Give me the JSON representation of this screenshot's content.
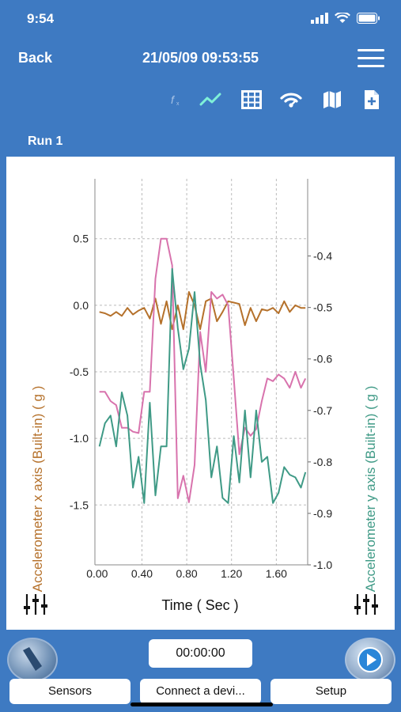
{
  "status_bar": {
    "time": "9:54"
  },
  "nav": {
    "back_label": "Back",
    "title": "21/05/09 09:53:55"
  },
  "toolbar": {
    "icons": [
      "function-icon",
      "line-chart-icon",
      "table-icon",
      "wifi-icon",
      "map-icon",
      "add-page-icon"
    ]
  },
  "run_label": "Run 1",
  "chart_data": {
    "type": "line",
    "xlabel": "Time ( Sec )",
    "ylabel_left": "Accelerometer x axis (Built-in) ( g )",
    "ylabel_right": "Accelerometer y axis (Built-in) ( g )",
    "x_ticks": [
      "0.00",
      "0.40",
      "0.80",
      "1.20",
      "1.60"
    ],
    "y_left_ticks": [
      "0.5",
      "0.0",
      "-0.5",
      "-1.0",
      "-1.5"
    ],
    "y_right_ticks": [
      "-0.4",
      "-0.5",
      "-0.6",
      "-0.7",
      "-0.8",
      "-0.9",
      "-1.0"
    ],
    "xlim": [
      -0.02,
      1.88
    ],
    "ylim_left": [
      -1.95,
      0.95
    ],
    "ylim_right": [
      -1.0,
      -0.25
    ],
    "series": [
      {
        "axis": "left",
        "color": "#b5712b",
        "x": [
          0.02,
          0.07,
          0.12,
          0.17,
          0.22,
          0.27,
          0.32,
          0.37,
          0.42,
          0.47,
          0.52,
          0.57,
          0.62,
          0.67,
          0.72,
          0.77,
          0.82,
          0.87,
          0.92,
          0.97,
          1.02,
          1.07,
          1.12,
          1.17,
          1.22,
          1.27,
          1.32,
          1.37,
          1.42,
          1.47,
          1.52,
          1.57,
          1.62,
          1.67,
          1.72,
          1.77,
          1.82,
          1.86
        ],
        "y": [
          -0.05,
          -0.06,
          -0.08,
          -0.05,
          -0.08,
          -0.02,
          -0.07,
          -0.04,
          -0.02,
          -0.1,
          0.05,
          -0.14,
          0.03,
          -0.18,
          0.0,
          -0.18,
          0.1,
          0.0,
          -0.18,
          0.03,
          0.05,
          -0.12,
          -0.05,
          0.03,
          0.02,
          0.01,
          -0.15,
          -0.02,
          -0.12,
          -0.03,
          -0.04,
          -0.02,
          -0.06,
          0.03,
          -0.05,
          0.0,
          -0.02,
          -0.02
        ]
      },
      {
        "axis": "left",
        "color": "#d873ad",
        "x": [
          0.02,
          0.07,
          0.12,
          0.17,
          0.22,
          0.27,
          0.32,
          0.37,
          0.42,
          0.47,
          0.52,
          0.57,
          0.62,
          0.67,
          0.72,
          0.77,
          0.82,
          0.87,
          0.92,
          0.97,
          1.02,
          1.07,
          1.12,
          1.17,
          1.22,
          1.27,
          1.32,
          1.37,
          1.42,
          1.47,
          1.52,
          1.57,
          1.62,
          1.67,
          1.72,
          1.77,
          1.82,
          1.86
        ],
        "y": [
          -0.65,
          -0.65,
          -0.72,
          -0.75,
          -0.92,
          -0.92,
          -0.95,
          -0.96,
          -0.65,
          -0.65,
          0.2,
          0.5,
          0.5,
          0.3,
          -1.45,
          -1.28,
          -1.48,
          -1.2,
          -0.2,
          -0.5,
          0.1,
          0.05,
          0.08,
          0.0,
          -0.55,
          -1.12,
          -0.92,
          -0.98,
          -0.93,
          -0.72,
          -0.55,
          -0.57,
          -0.52,
          -0.55,
          -0.62,
          -0.5,
          -0.62,
          -0.55
        ]
      },
      {
        "axis": "right",
        "color": "#3f9a86",
        "x": [
          0.02,
          0.07,
          0.12,
          0.17,
          0.22,
          0.27,
          0.32,
          0.37,
          0.42,
          0.47,
          0.52,
          0.57,
          0.62,
          0.67,
          0.72,
          0.77,
          0.82,
          0.87,
          0.92,
          0.97,
          1.02,
          1.07,
          1.12,
          1.17,
          1.22,
          1.27,
          1.32,
          1.37,
          1.42,
          1.47,
          1.52,
          1.57,
          1.62,
          1.67,
          1.72,
          1.77,
          1.82,
          1.86
        ],
        "y": [
          -0.77,
          -0.725,
          -0.71,
          -0.77,
          -0.665,
          -0.71,
          -0.85,
          -0.79,
          -0.88,
          -0.685,
          -0.865,
          -0.77,
          -0.77,
          -0.425,
          -0.54,
          -0.62,
          -0.58,
          -0.47,
          -0.61,
          -0.68,
          -0.83,
          -0.77,
          -0.87,
          -0.88,
          -0.75,
          -0.84,
          -0.7,
          -0.83,
          -0.7,
          -0.8,
          -0.79,
          -0.88,
          -0.86,
          -0.81,
          -0.825,
          -0.83,
          -0.85,
          -0.82
        ]
      }
    ]
  },
  "bottom": {
    "timer": "00:00:00",
    "sensors_label": "Sensors",
    "connect_label": "Connect a devi...",
    "setup_label": "Setup"
  }
}
